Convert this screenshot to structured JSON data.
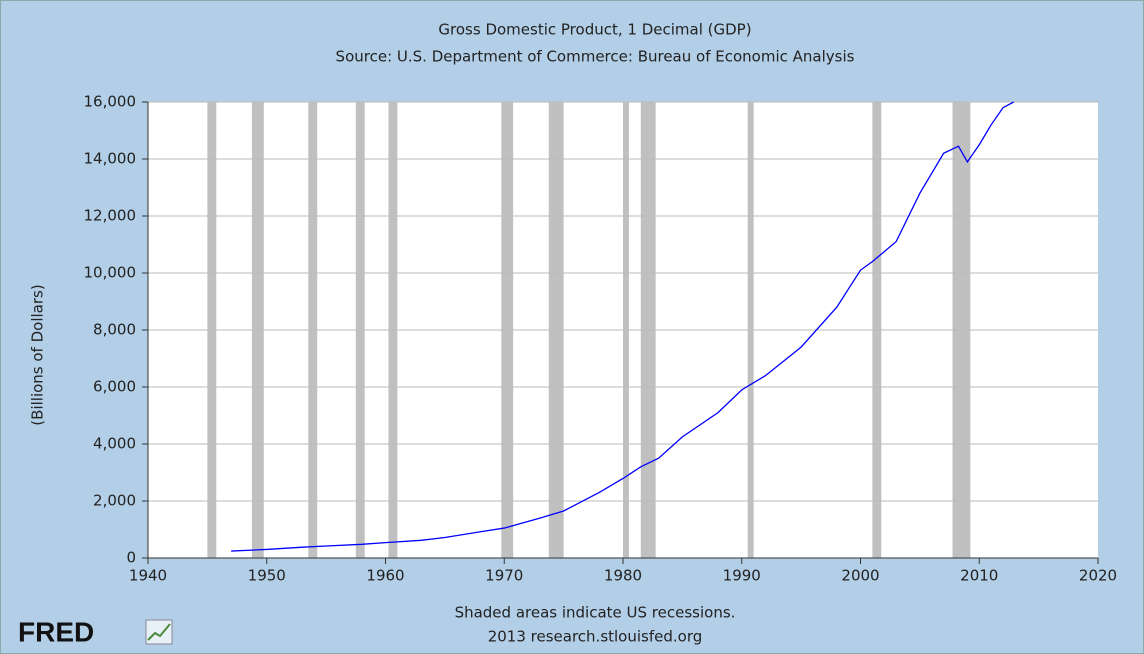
{
  "chart_data": {
    "type": "line",
    "title": "Gross Domestic Product, 1 Decimal (GDP)",
    "subtitle": "Source: U.S. Department of Commerce: Bureau of Economic Analysis",
    "y_label": "(Billions of Dollars)",
    "footnote": "Shaded areas indicate US recessions.",
    "credit": "2013 research.stlouisfed.org",
    "logo": "FRED",
    "xlim": [
      1940,
      2020
    ],
    "xticks": [
      1940,
      1950,
      1960,
      1970,
      1980,
      1990,
      2000,
      2010,
      2020
    ],
    "ylim": [
      0,
      16000
    ],
    "yticks": [
      0,
      {
        "value": 2000,
        "label": "2,000"
      },
      {
        "value": 4000,
        "label": "4,000"
      },
      {
        "value": 6000,
        "label": "6,000"
      },
      {
        "value": 8000,
        "label": "8,000"
      },
      {
        "value": 10000,
        "label": "10,000"
      },
      {
        "value": 12000,
        "label": "12,000"
      },
      {
        "value": 14000,
        "label": "14,000"
      },
      {
        "value": 16000,
        "label": "16,000"
      }
    ],
    "grid": true,
    "recession_color": "#c0c0c0",
    "recessions": [
      [
        1945.0,
        1945.75
      ],
      [
        1948.75,
        1949.75
      ],
      [
        1953.5,
        1954.25
      ],
      [
        1957.5,
        1958.25
      ],
      [
        1960.25,
        1961.0
      ],
      [
        1969.75,
        1970.75
      ],
      [
        1973.75,
        1975.0
      ],
      [
        1980.0,
        1980.5
      ],
      [
        1981.5,
        1982.75
      ],
      [
        1990.5,
        1991.0
      ],
      [
        2001.0,
        2001.75
      ],
      [
        2007.75,
        2009.25
      ]
    ],
    "x": [
      1947,
      1950,
      1953,
      1955,
      1958,
      1960,
      1963,
      1965,
      1968,
      1970,
      1973,
      1975,
      1978,
      1980,
      1981.5,
      1983,
      1985,
      1988,
      1990,
      1992,
      1995,
      1998,
      2000,
      2001,
      2003,
      2005,
      2007,
      2008.25,
      2009,
      2010,
      2011,
      2012,
      2012.9
    ],
    "series": [
      {
        "name": "GDP",
        "color": "#0000ff",
        "values": [
          243,
          300,
          380,
          420,
          480,
          540,
          620,
          720,
          920,
          1050,
          1400,
          1650,
          2300,
          2790,
          3200,
          3500,
          4250,
          5100,
          5900,
          6400,
          7400,
          8800,
          10100,
          10400,
          11100,
          12800,
          14200,
          14450,
          13900,
          14500,
          15200,
          15800,
          16000
        ]
      }
    ]
  }
}
